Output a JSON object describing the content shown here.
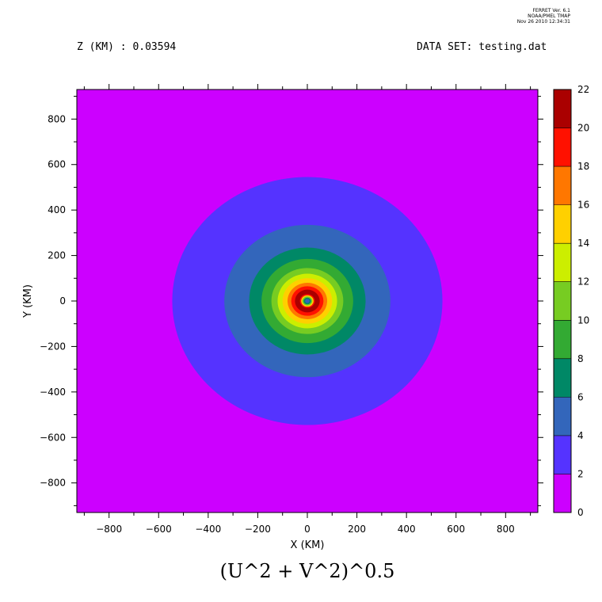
{
  "stamp": {
    "line1": "FERRET Ver. 6.1",
    "line2": "NOAA/PMEL TMAP",
    "line3": "Nov 26 2010 12:34:31"
  },
  "header": {
    "z_label": "Z (KM) : 0.03594",
    "dataset_label": "DATA SET: testing.dat"
  },
  "chart_data": {
    "type": "heatmap",
    "title": "(U^2 + V^2)^0.5",
    "xlabel": "X (KM)",
    "ylabel": "Y (KM)",
    "xlim": [
      -930,
      930
    ],
    "ylim": [
      -930,
      930
    ],
    "x_ticks": [
      -800,
      -600,
      -400,
      -200,
      0,
      200,
      400,
      600,
      800
    ],
    "y_ticks": [
      -800,
      -600,
      -400,
      -200,
      0,
      200,
      400,
      600,
      800
    ],
    "center": [
      0,
      0
    ],
    "colorbar": {
      "levels": [
        0,
        2,
        4,
        6,
        8,
        10,
        12,
        14,
        16,
        18,
        20,
        22
      ],
      "colors": [
        "#cc00ff",
        "#5533ff",
        "#3366bb",
        "#008866",
        "#33aa33",
        "#77cc22",
        "#ccee00",
        "#ffd000",
        "#ff7700",
        "#ff1100",
        "#aa0000"
      ]
    },
    "contour_bands": [
      {
        "band": "0-2",
        "radius_km": 9999
      },
      {
        "band": "2-4",
        "radius_km": 545
      },
      {
        "band": "4-6",
        "radius_km": 335
      },
      {
        "band": "6-8",
        "radius_km": 235
      },
      {
        "band": "8-10",
        "radius_km": 185
      },
      {
        "band": "10-12",
        "radius_km": 145
      },
      {
        "band": "12-14",
        "radius_km": 120
      },
      {
        "band": "14-16",
        "radius_km": 100
      },
      {
        "band": "16-18",
        "radius_km": 80
      },
      {
        "band": "18-20",
        "radius_km": 65
      },
      {
        "band": "20-22",
        "radius_km": 50
      },
      {
        "band": "18-20",
        "radius_km": 30
      },
      {
        "band": "14-16",
        "radius_km": 25
      },
      {
        "band": "10-12",
        "radius_km": 20
      },
      {
        "band": "6-8",
        "radius_km": 15
      },
      {
        "band": "4-6",
        "radius_km": 9
      }
    ]
  }
}
